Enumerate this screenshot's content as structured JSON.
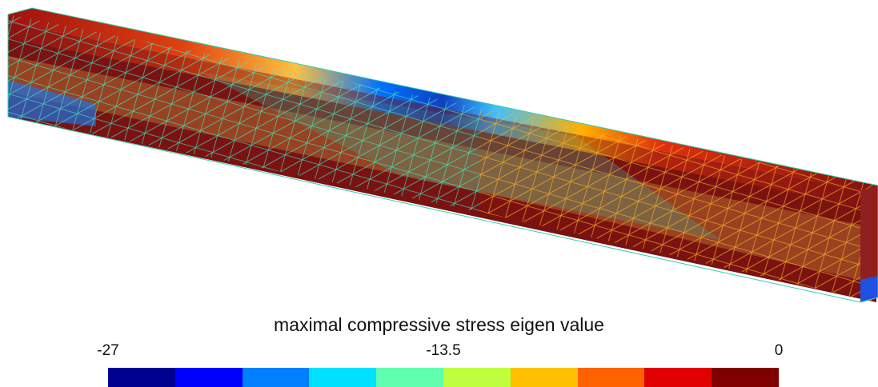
{
  "colorbar": {
    "title": "maximal compressive stress eigen value",
    "tick_min": "-27",
    "tick_mid": "-13.5",
    "tick_max": "0",
    "colors": [
      "#00008f",
      "#0000ff",
      "#0080ff",
      "#00e0ff",
      "#60ffb0",
      "#c0ff40",
      "#ffc000",
      "#ff6000",
      "#e00000",
      "#800000"
    ]
  },
  "chart_data": {
    "type": "heatmap",
    "colormap": "jet",
    "range": [
      -27,
      0
    ],
    "ticks": [
      -27,
      -13.5,
      0
    ],
    "colorbar_title": "maximal compressive stress eigen value"
  }
}
